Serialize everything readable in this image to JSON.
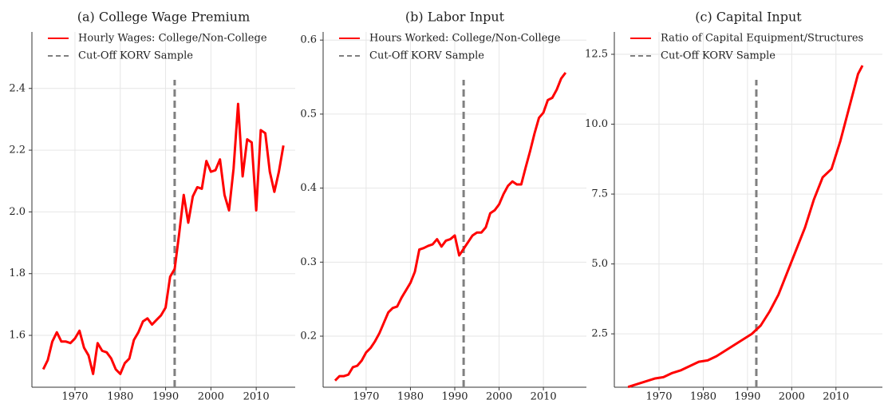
{
  "chart_data": [
    {
      "type": "line",
      "title": "(a) College Wage Premium",
      "x": [
        1963,
        1964,
        1965,
        1966,
        1967,
        1968,
        1969,
        1970,
        1971,
        1972,
        1973,
        1974,
        1975,
        1976,
        1977,
        1978,
        1979,
        1980,
        1981,
        1982,
        1983,
        1984,
        1985,
        1986,
        1987,
        1988,
        1989,
        1990,
        1991,
        1992,
        1993,
        1994,
        1995,
        1996,
        1997,
        1998,
        1999,
        2000,
        2001,
        2002,
        2003,
        2004,
        2005,
        2006,
        2007,
        2008,
        2009,
        2010,
        2011,
        2012,
        2013,
        2014,
        2015,
        2016
      ],
      "series": [
        {
          "name": "Hourly Wages: College/Non-College",
          "color": "#ff0000",
          "values": [
            1.49,
            1.52,
            1.58,
            1.61,
            1.58,
            1.58,
            1.575,
            1.59,
            1.615,
            1.56,
            1.535,
            1.475,
            1.575,
            1.55,
            1.545,
            1.525,
            1.49,
            1.475,
            1.51,
            1.525,
            1.585,
            1.61,
            1.645,
            1.655,
            1.635,
            1.65,
            1.665,
            1.69,
            1.79,
            1.815,
            1.93,
            2.055,
            1.965,
            2.05,
            2.08,
            2.075,
            2.165,
            2.13,
            2.135,
            2.17,
            2.055,
            2.005,
            2.14,
            2.35,
            2.115,
            2.235,
            2.225,
            2.005,
            2.265,
            2.255,
            2.13,
            2.065,
            2.13,
            2.215
          ]
        }
      ],
      "vline": {
        "name": "Cut-Off KORV Sample",
        "x": 1992,
        "color": "#808080"
      },
      "xlim": [
        1960.5,
        2018.6
      ],
      "ylim": [
        1.432,
        2.583
      ],
      "xticks": [
        1970,
        1980,
        1990,
        2000,
        2010
      ],
      "yticks": [
        1.6,
        1.8,
        {
          "value": 2.0,
          "label": "2.0"
        },
        2.2,
        2.4
      ],
      "grid": true
    },
    {
      "type": "line",
      "title": "(b) Labor Input",
      "x": [
        1963,
        1964,
        1965,
        1966,
        1967,
        1968,
        1969,
        1970,
        1971,
        1972,
        1973,
        1974,
        1975,
        1976,
        1977,
        1978,
        1979,
        1980,
        1981,
        1982,
        1983,
        1984,
        1985,
        1986,
        1987,
        1988,
        1989,
        1990,
        1991,
        1992,
        1993,
        1994,
        1995,
        1996,
        1997,
        1998,
        1999,
        2000,
        2001,
        2002,
        2003,
        2004,
        2005,
        2006,
        2007,
        2008,
        2009,
        2010,
        2011,
        2012,
        2013,
        2014,
        2015
      ],
      "series": [
        {
          "name": "Hours Worked: College/Non-College",
          "color": "#ff0000",
          "values": [
            0.14,
            0.146,
            0.146,
            0.148,
            0.158,
            0.16,
            0.167,
            0.178,
            0.184,
            0.193,
            0.204,
            0.218,
            0.232,
            0.238,
            0.24,
            0.252,
            0.262,
            0.272,
            0.287,
            0.317,
            0.319,
            0.322,
            0.324,
            0.331,
            0.321,
            0.329,
            0.331,
            0.336,
            0.309,
            0.318,
            0.327,
            0.336,
            0.34,
            0.34,
            0.347,
            0.366,
            0.37,
            0.378,
            0.392,
            0.403,
            0.409,
            0.405,
            0.405,
            0.428,
            0.45,
            0.474,
            0.495,
            0.502,
            0.519,
            0.522,
            0.533,
            0.548,
            0.556
          ]
        }
      ],
      "vline": {
        "name": "Cut-Off KORV Sample",
        "x": 1992,
        "color": "#808080"
      },
      "xlim": [
        1960.3,
        2019.7
      ],
      "ylim": [
        0.131,
        0.611
      ],
      "xticks": [
        1970,
        1980,
        1990,
        2000,
        2010
      ],
      "yticks": [
        0.2,
        0.3,
        0.4,
        0.5,
        0.6
      ],
      "grid": true
    },
    {
      "type": "line",
      "title": "(c) Capital Input",
      "x": [
        1963,
        1965,
        1967,
        1969,
        1971,
        1973,
        1975,
        1977,
        1979,
        1981,
        1983,
        1985,
        1987,
        1989,
        1991,
        1993,
        1995,
        1997,
        1999,
        2001,
        2003,
        2005,
        2007,
        2009,
        2011,
        2013,
        2015,
        2016
      ],
      "series": [
        {
          "name": "Ratio of Capital Equipment/Structures",
          "color": "#ff0000",
          "values": [
            0.6,
            0.7,
            0.8,
            0.9,
            0.95,
            1.1,
            1.2,
            1.35,
            1.5,
            1.55,
            1.7,
            1.9,
            2.1,
            2.3,
            2.5,
            2.8,
            3.3,
            3.9,
            4.7,
            5.5,
            6.3,
            7.3,
            8.1,
            8.4,
            9.4,
            10.6,
            11.8,
            12.1
          ]
        }
      ],
      "vline": {
        "name": "Cut-Off KORV Sample",
        "x": 1992,
        "color": "#808080"
      },
      "xlim": [
        1959.9,
        2020.5
      ],
      "ylim": [
        0.59,
        13.3
      ],
      "xticks": [
        1970,
        1980,
        1990,
        2000,
        2010
      ],
      "yticks": [
        2.5,
        {
          "value": 5.0,
          "label": "5.0"
        },
        7.5,
        {
          "value": 10.0,
          "label": "10.0"
        },
        12.5
      ],
      "grid": true
    }
  ]
}
